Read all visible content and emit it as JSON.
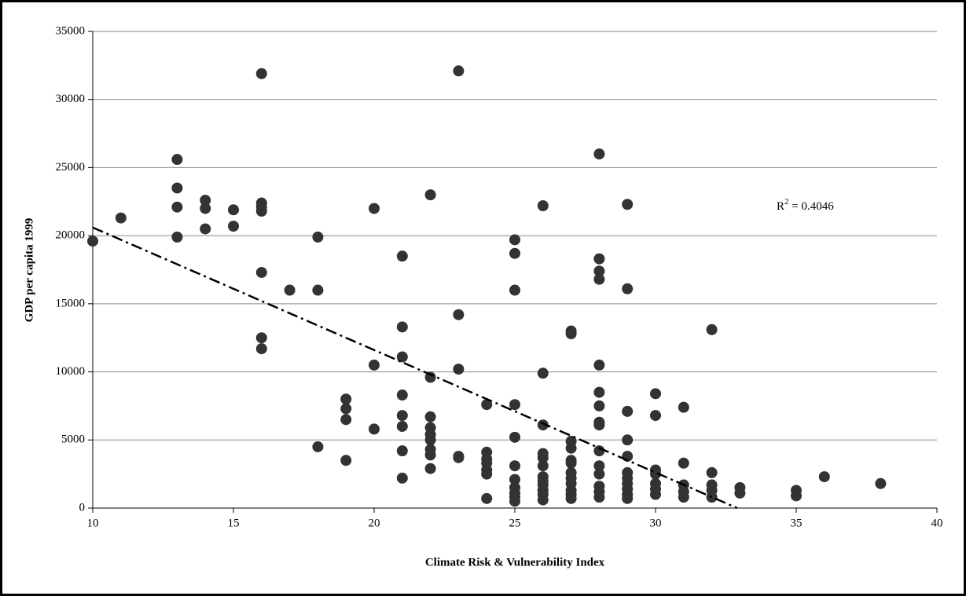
{
  "chart_data": {
    "type": "scatter",
    "x_label": "Climate Risk & Vulnerability Index",
    "y_label": "GDP per capita 1999",
    "x": [
      10,
      11,
      13,
      13,
      13,
      13,
      14,
      14,
      14,
      15,
      15,
      16,
      16,
      16,
      16,
      16,
      16,
      16,
      17,
      18,
      18,
      18,
      19,
      19,
      19,
      19,
      20,
      20,
      20,
      21,
      21,
      21,
      21,
      21,
      21,
      21,
      21,
      22,
      22,
      22,
      22,
      22,
      22,
      22,
      22,
      22,
      23,
      23,
      23,
      23,
      23,
      24,
      24,
      24,
      24,
      24,
      24,
      24,
      25,
      25,
      25,
      25,
      25,
      25,
      25,
      25,
      25,
      25,
      25,
      26,
      26,
      26,
      26,
      26,
      26,
      26,
      26,
      26,
      26,
      26,
      26,
      27,
      27,
      27,
      27,
      27,
      27,
      27,
      27,
      27,
      27,
      27,
      27,
      28,
      28,
      28,
      28,
      28,
      28,
      28,
      28,
      28,
      28,
      28,
      28,
      28,
      28,
      28,
      29,
      29,
      29,
      29,
      29,
      29,
      29,
      29,
      29,
      29,
      29,
      30,
      30,
      30,
      30,
      30,
      30,
      30,
      31,
      31,
      31,
      31,
      31,
      32,
      32,
      32,
      32,
      32,
      33,
      33,
      35,
      35,
      36,
      38
    ],
    "values": [
      19600,
      21300,
      25600,
      23500,
      22100,
      19900,
      22600,
      22000,
      20500,
      21900,
      20700,
      31900,
      22400,
      22100,
      21800,
      17300,
      12500,
      11700,
      16000,
      19900,
      16000,
      4500,
      8000,
      7300,
      6500,
      3500,
      22000,
      10500,
      5800,
      18500,
      13300,
      11100,
      8300,
      6800,
      6000,
      4200,
      2200,
      23000,
      9600,
      6700,
      5900,
      5400,
      5000,
      4300,
      3900,
      2900,
      32100,
      14200,
      10200,
      3800,
      3700,
      7600,
      4100,
      3600,
      3300,
      2800,
      2500,
      700,
      19700,
      18700,
      16000,
      7600,
      5200,
      3100,
      2100,
      1500,
      1100,
      800,
      500,
      22200,
      9900,
      6100,
      4000,
      3700,
      3100,
      2300,
      2000,
      1700,
      1300,
      1000,
      600,
      13000,
      12800,
      4900,
      4400,
      3500,
      3300,
      2600,
      2200,
      1800,
      1300,
      1000,
      700,
      26000,
      18300,
      17400,
      16800,
      10500,
      8500,
      7500,
      6300,
      6100,
      4200,
      3100,
      2500,
      1600,
      1200,
      800,
      22300,
      16100,
      7100,
      5000,
      3800,
      2600,
      2200,
      1800,
      1400,
      1000,
      700,
      8400,
      6800,
      2800,
      2500,
      1800,
      1400,
      1000,
      7400,
      3300,
      1700,
      1200,
      800,
      13100,
      2600,
      1700,
      1300,
      800,
      1500,
      1100,
      1300,
      900,
      2300,
      1800
    ],
    "color": "#333333",
    "trendline": {
      "x": [
        10,
        32.9
      ],
      "values": [
        20600,
        0
      ],
      "color": "#000000"
    },
    "annotation": {
      "base": "R",
      "sup": "2",
      "rest": " = 0.4046"
    },
    "xlim": [
      10,
      40
    ],
    "xticks": [
      10,
      15,
      20,
      25,
      30,
      35,
      40
    ],
    "ylim": [
      0,
      35000
    ],
    "yticks": [
      0,
      5000,
      10000,
      15000,
      20000,
      25000,
      30000,
      35000
    ],
    "grid": true
  }
}
